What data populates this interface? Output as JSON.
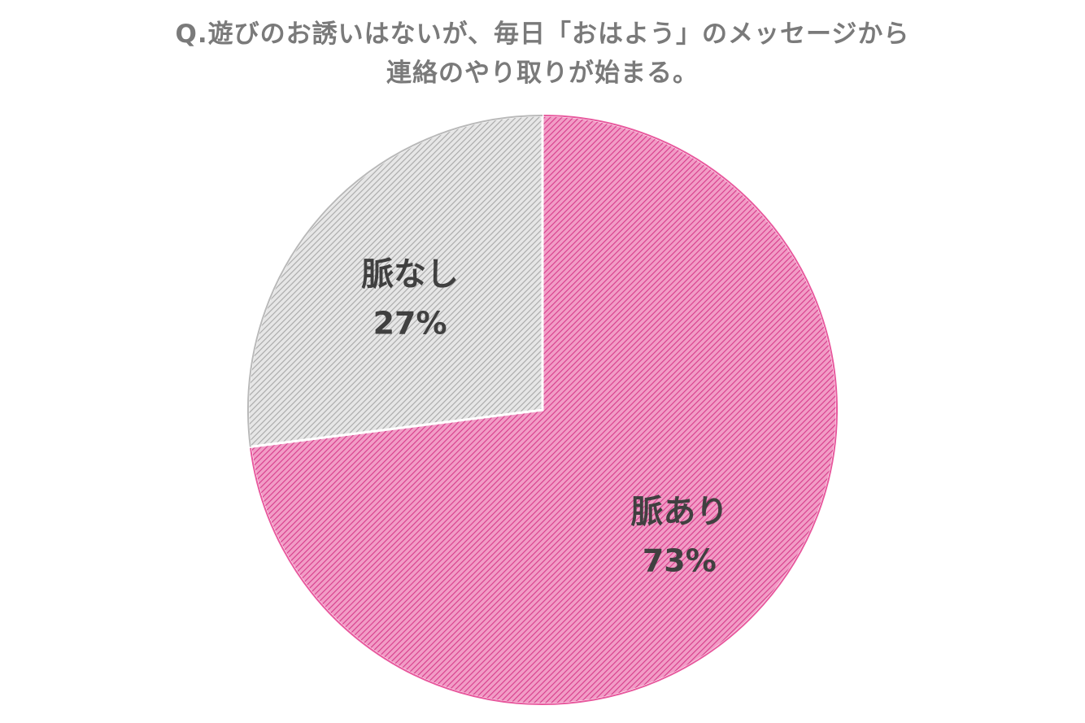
{
  "chart_data": {
    "type": "pie",
    "title_lines": [
      "Q.遊びのお誘いはないが、毎日「おはよう」のメッセージから",
      "連絡のやり取りが始まる。"
    ],
    "slices": [
      {
        "name": "脈あり",
        "value": 73,
        "percent_label": "73%",
        "color": "#e8599e"
      },
      {
        "name": "脈なし",
        "value": 27,
        "percent_label": "27%",
        "color": "#b9b9b9"
      }
    ],
    "start_angle_deg": 0,
    "direction": "clockwise",
    "fill_pattern": "diagonal-hatch",
    "label_color": "#404040",
    "title_color": "#7a7a7a",
    "legend": "none"
  }
}
